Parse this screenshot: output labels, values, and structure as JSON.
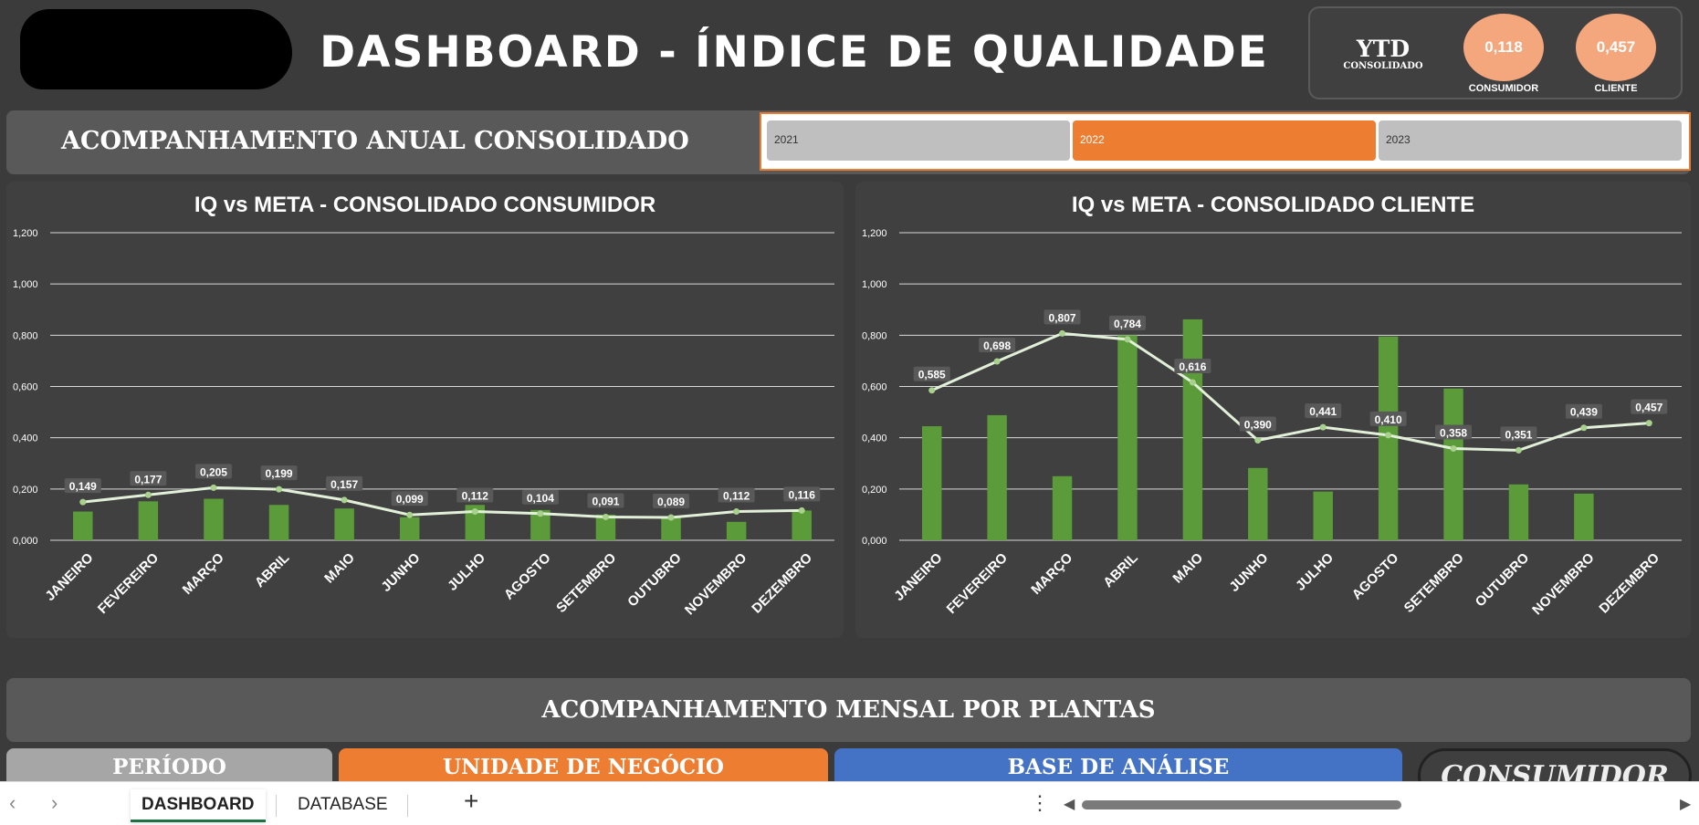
{
  "header": {
    "title": "DASHBOARD - ÍNDICE DE QUALIDADE",
    "ytd_label": "YTD",
    "ytd_sublabel": "CONSOLIDADO",
    "kpi_consumidor_value": "0,118",
    "kpi_consumidor_label": "CONSUMIDOR",
    "kpi_cliente_value": "0,457",
    "kpi_cliente_label": "CLIENTE",
    "accent_color": "#f4a77c"
  },
  "annual_section": {
    "title": "ACOMPANHAMENTO ANUAL CONSOLIDADO",
    "years": [
      "2021",
      "2022",
      "2023"
    ],
    "selected_year": "2022",
    "selected_color": "#ed7d31"
  },
  "monthly_section": {
    "title": "ACOMPANHAMENTO MENSAL POR PLANTAS",
    "filter_periodo": "PERÍODO",
    "filter_unidade": "UNIDADE DE NEGÓCIO",
    "filter_base": "BASE DE ANÁLISE",
    "consumidor_button": "CONSUMIDOR"
  },
  "tabs": {
    "sheets": [
      "DASHBOARD",
      "DATABASE"
    ],
    "active": "DASHBOARD"
  },
  "chart_data": [
    {
      "type": "bar",
      "title": "IQ vs META - CONSOLIDADO CONSUMIDOR",
      "categories": [
        "JANEIRO",
        "FEVEREIRO",
        "MARÇO",
        "ABRIL",
        "MAIO",
        "JUNHO",
        "JULHO",
        "AGOSTO",
        "SETEMBRO",
        "OUTUBRO",
        "NOVEMBRO",
        "DEZEMBRO"
      ],
      "yticks": [
        "0,000",
        "0,200",
        "0,400",
        "0,600",
        "0,800",
        "1,000",
        "1,200"
      ],
      "ylim": [
        0,
        1.2
      ],
      "grid": true,
      "series": [
        {
          "kind": "bar",
          "color": "#5b9b3a",
          "values": [
            0.112,
            0.152,
            0.162,
            0.138,
            0.124,
            0.09,
            0.138,
            0.118,
            0.1,
            0.09,
            0.072,
            0.116
          ]
        },
        {
          "kind": "line",
          "color": "#e2f0d9",
          "values": [
            0.149,
            0.177,
            0.205,
            0.199,
            0.157,
            0.099,
            0.112,
            0.104,
            0.091,
            0.089,
            0.112,
            0.116
          ],
          "labels": [
            "0,149",
            "0,177",
            "0,205",
            "0,199",
            "0,157",
            "0,099",
            "0,112",
            "0,104",
            "0,091",
            "0,089",
            "0,112",
            "0,116"
          ]
        }
      ]
    },
    {
      "type": "bar",
      "title": "IQ vs META - CONSOLIDADO CLIENTE",
      "categories": [
        "JANEIRO",
        "FEVEREIRO",
        "MARÇO",
        "ABRIL",
        "MAIO",
        "JUNHO",
        "JULHO",
        "AGOSTO",
        "SETEMBRO",
        "OUTUBRO",
        "NOVEMBRO",
        "DEZEMBRO"
      ],
      "yticks": [
        "0,000",
        "0,200",
        "0,400",
        "0,600",
        "0,800",
        "1,000",
        "1,200"
      ],
      "ylim": [
        0,
        1.2
      ],
      "grid": true,
      "series": [
        {
          "kind": "bar",
          "color": "#5b9b3a",
          "values": [
            0.445,
            0.488,
            0.25,
            0.8,
            0.862,
            0.282,
            0.19,
            0.795,
            0.592,
            0.218,
            0.182,
            0
          ]
        },
        {
          "kind": "line",
          "color": "#e2f0d9",
          "values": [
            0.585,
            0.698,
            0.807,
            0.784,
            0.616,
            0.39,
            0.441,
            0.41,
            0.358,
            0.351,
            0.439,
            0.457
          ],
          "labels": [
            "0,585",
            "0,698",
            "0,807",
            "0,784",
            "0,616",
            "0,390",
            "0,441",
            "0,410",
            "0,358",
            "0,351",
            "0,439",
            "0,457"
          ]
        }
      ]
    }
  ]
}
